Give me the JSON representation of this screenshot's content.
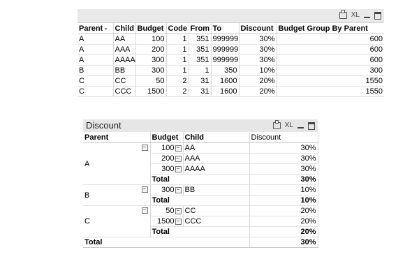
{
  "straight_table": {
    "icons": [
      "printer-icon",
      "xl-icon",
      "minimize-icon",
      "maximize-icon"
    ],
    "xl_label": "XL",
    "headers": [
      "Parent",
      "Child",
      "Budget",
      "Code",
      "From",
      "To",
      "Discount",
      "Budget Group By Parent"
    ],
    "rows": [
      [
        "A",
        "AA",
        "100",
        "1",
        "351",
        "999999",
        "30%",
        "600"
      ],
      [
        "A",
        "AAA",
        "200",
        "1",
        "351",
        "999999",
        "30%",
        "600"
      ],
      [
        "A",
        "AAAA",
        "300",
        "1",
        "351",
        "999999",
        "30%",
        "600"
      ],
      [
        "B",
        "BB",
        "300",
        "1",
        "1",
        "350",
        "10%",
        "300"
      ],
      [
        "C",
        "CC",
        "50",
        "2",
        "31",
        "1600",
        "20%",
        "1550"
      ],
      [
        "C",
        "CCC",
        "1500",
        "2",
        "31",
        "1600",
        "20%",
        "1550"
      ]
    ]
  },
  "pivot": {
    "title": "Discount",
    "xl_label": "XL",
    "headers": [
      "Parent",
      "Budget",
      "Child",
      "Discount"
    ],
    "groups": [
      {
        "parent": "A",
        "rows": [
          {
            "budget": "100",
            "child": "AA",
            "discount": "30%"
          },
          {
            "budget": "200",
            "child": "AAA",
            "discount": "30%"
          },
          {
            "budget": "300",
            "child": "AAAA",
            "discount": "30%"
          }
        ],
        "total_label": "Total",
        "total": "30%"
      },
      {
        "parent": "B",
        "rows": [
          {
            "budget": "300",
            "child": "BB",
            "discount": "10%"
          }
        ],
        "total_label": "Total",
        "total": "10%"
      },
      {
        "parent": "C",
        "rows": [
          {
            "budget": "50",
            "child": "CC",
            "discount": "20%"
          },
          {
            "budget": "1500",
            "child": "CCC",
            "discount": "20%"
          }
        ],
        "total_label": "Total",
        "total": "20%"
      }
    ],
    "grand_total_label": "Total",
    "grand_total": "30%",
    "collapse_symbol": "−"
  }
}
